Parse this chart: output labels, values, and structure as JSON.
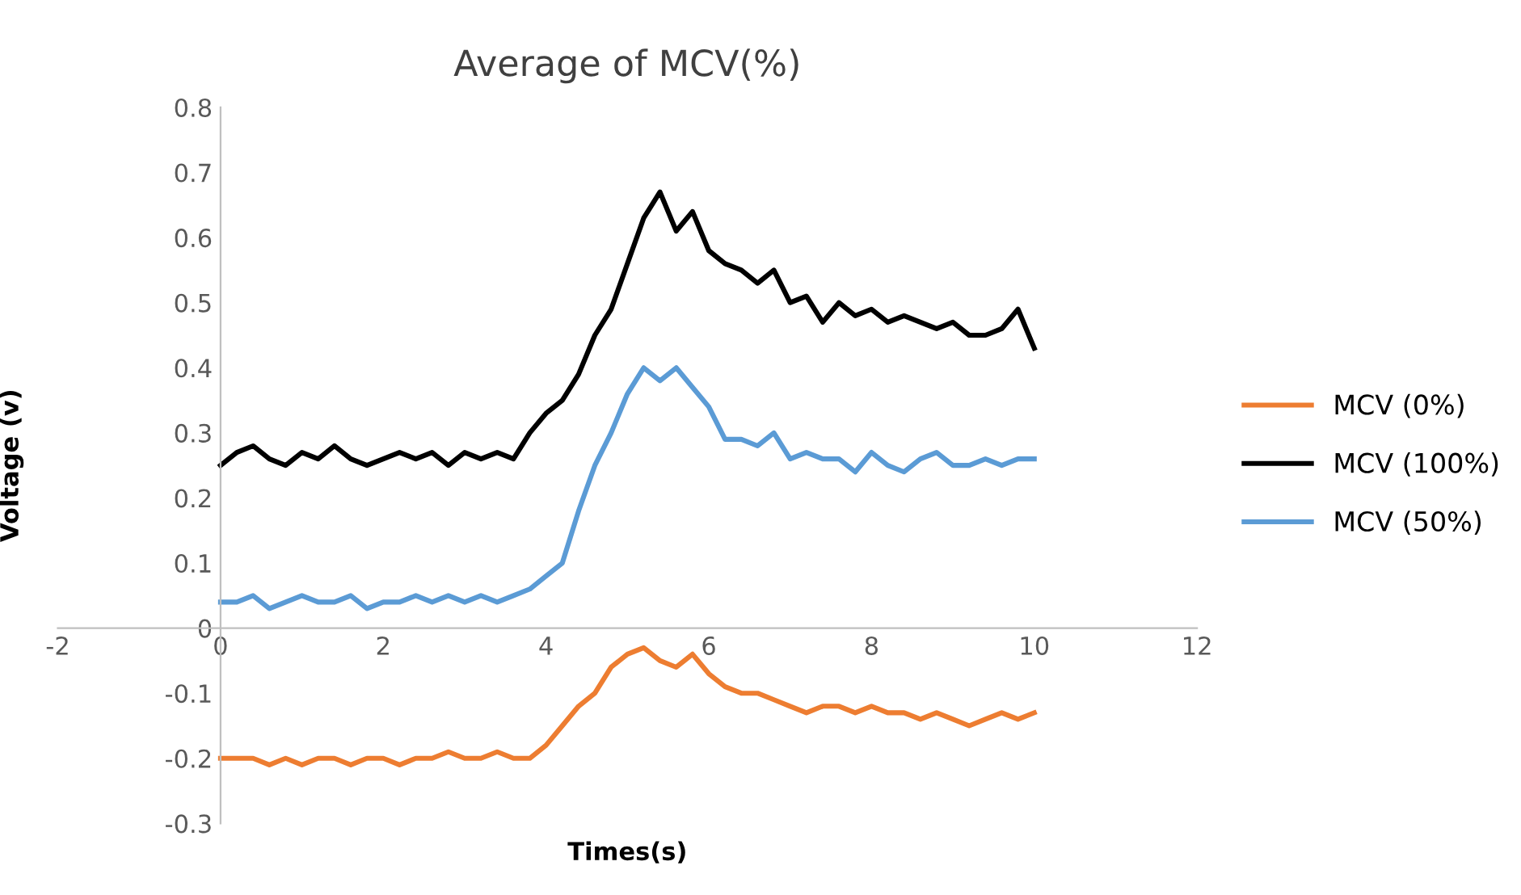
{
  "chart_data": {
    "type": "line",
    "title": "Average of MCV(%)",
    "xlabel": "Times(s)",
    "ylabel": "Voltage (v)",
    "x": [
      0,
      0.2,
      0.4,
      0.6,
      0.8,
      1,
      1.2,
      1.4,
      1.6,
      1.8,
      2,
      2.2,
      2.4,
      2.6,
      2.8,
      3,
      3.2,
      3.4,
      3.6,
      3.8,
      4,
      4.2,
      4.4,
      4.6,
      4.8,
      5,
      5.2,
      5.4,
      5.6,
      5.8,
      6,
      6.2,
      6.4,
      6.6,
      6.8,
      7,
      7.2,
      7.4,
      7.6,
      7.8,
      8,
      8.2,
      8.4,
      8.6,
      8.8,
      9,
      9.2,
      9.4,
      9.6,
      9.8,
      10
    ],
    "series": [
      {
        "name": "MCV (0%)",
        "color": "#ed7d31",
        "values": [
          -0.2,
          -0.2,
          -0.2,
          -0.21,
          -0.2,
          -0.21,
          -0.2,
          -0.2,
          -0.21,
          -0.2,
          -0.2,
          -0.21,
          -0.2,
          -0.2,
          -0.19,
          -0.2,
          -0.2,
          -0.19,
          -0.2,
          -0.2,
          -0.18,
          -0.15,
          -0.12,
          -0.1,
          -0.06,
          -0.04,
          -0.03,
          -0.05,
          -0.06,
          -0.04,
          -0.07,
          -0.09,
          -0.1,
          -0.1,
          -0.11,
          -0.12,
          -0.13,
          -0.12,
          -0.12,
          -0.13,
          -0.12,
          -0.13,
          -0.13,
          -0.14,
          -0.13,
          -0.14,
          -0.15,
          -0.14,
          -0.13,
          -0.14,
          -0.13
        ]
      },
      {
        "name": "MCV (100%)",
        "color": "#000000",
        "values": [
          0.25,
          0.27,
          0.28,
          0.26,
          0.25,
          0.27,
          0.26,
          0.28,
          0.26,
          0.25,
          0.26,
          0.27,
          0.26,
          0.27,
          0.25,
          0.27,
          0.26,
          0.27,
          0.26,
          0.3,
          0.33,
          0.35,
          0.39,
          0.45,
          0.49,
          0.56,
          0.63,
          0.67,
          0.61,
          0.64,
          0.58,
          0.56,
          0.55,
          0.53,
          0.55,
          0.5,
          0.51,
          0.47,
          0.5,
          0.48,
          0.49,
          0.47,
          0.48,
          0.47,
          0.46,
          0.47,
          0.45,
          0.45,
          0.46,
          0.49,
          0.43
        ]
      },
      {
        "name": "MCV (50%)",
        "color": "#5b9bd5",
        "values": [
          0.04,
          0.04,
          0.05,
          0.03,
          0.04,
          0.05,
          0.04,
          0.04,
          0.05,
          0.03,
          0.04,
          0.04,
          0.05,
          0.04,
          0.05,
          0.04,
          0.05,
          0.04,
          0.05,
          0.06,
          0.08,
          0.1,
          0.18,
          0.25,
          0.3,
          0.36,
          0.4,
          0.38,
          0.4,
          0.37,
          0.34,
          0.29,
          0.29,
          0.28,
          0.3,
          0.26,
          0.27,
          0.26,
          0.26,
          0.24,
          0.27,
          0.25,
          0.24,
          0.26,
          0.27,
          0.25,
          0.25,
          0.26,
          0.25,
          0.26,
          0.26
        ]
      }
    ],
    "xlim": [
      -2,
      12
    ],
    "xticks": [
      -2,
      0,
      2,
      4,
      6,
      8,
      10,
      12
    ],
    "ylim": [
      -0.3,
      0.8
    ],
    "yticks": [
      -0.3,
      -0.2,
      -0.1,
      0,
      0.1,
      0.2,
      0.3,
      0.4,
      0.5,
      0.6,
      0.7,
      0.8
    ],
    "grid": false,
    "legend": "right",
    "marker": "none",
    "line_style": "solid"
  }
}
